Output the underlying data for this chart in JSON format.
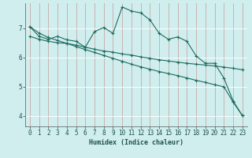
{
  "xlabel": "Humidex (Indice chaleur)",
  "bg_color": "#d0eeee",
  "grid_color": "#b8d8d8",
  "line_color": "#1e6b60",
  "xlim": [
    -0.5,
    23.5
  ],
  "ylim": [
    3.65,
    7.85
  ],
  "yticks": [
    4,
    5,
    6,
    7
  ],
  "xticks": [
    0,
    1,
    2,
    3,
    4,
    5,
    6,
    7,
    8,
    9,
    10,
    11,
    12,
    13,
    14,
    15,
    16,
    17,
    18,
    19,
    20,
    21,
    22,
    23
  ],
  "line1_x": [
    0,
    1,
    2,
    3,
    4,
    5,
    6,
    7,
    8,
    9,
    10,
    11,
    12,
    13,
    14,
    15,
    16,
    17,
    18,
    19,
    20,
    21,
    22,
    23
  ],
  "line1_y": [
    7.05,
    6.72,
    6.62,
    6.72,
    6.6,
    6.55,
    6.35,
    6.88,
    7.02,
    6.82,
    7.72,
    7.58,
    7.52,
    7.28,
    6.82,
    6.62,
    6.7,
    6.55,
    6.05,
    5.8,
    5.8,
    5.3,
    4.52,
    4.02
  ],
  "line2_x": [
    0,
    1,
    2,
    3,
    4,
    5,
    6,
    7,
    8,
    9,
    10,
    11,
    12,
    13,
    14,
    15,
    16,
    17,
    18,
    19,
    20,
    21,
    22,
    23
  ],
  "line2_y": [
    6.72,
    6.62,
    6.55,
    6.5,
    6.48,
    6.42,
    6.35,
    6.28,
    6.22,
    6.18,
    6.12,
    6.08,
    6.02,
    5.97,
    5.92,
    5.88,
    5.84,
    5.8,
    5.77,
    5.74,
    5.71,
    5.67,
    5.63,
    5.58
  ],
  "line3_x": [
    0,
    1,
    2,
    3,
    4,
    5,
    6,
    7,
    8,
    9,
    10,
    11,
    12,
    13,
    14,
    15,
    16,
    17,
    18,
    19,
    20,
    21,
    22,
    23
  ],
  "line3_y": [
    7.05,
    6.83,
    6.68,
    6.58,
    6.48,
    6.37,
    6.27,
    6.17,
    6.07,
    5.97,
    5.87,
    5.77,
    5.68,
    5.6,
    5.52,
    5.45,
    5.38,
    5.3,
    5.22,
    5.15,
    5.07,
    5.0,
    4.48,
    4.02
  ]
}
